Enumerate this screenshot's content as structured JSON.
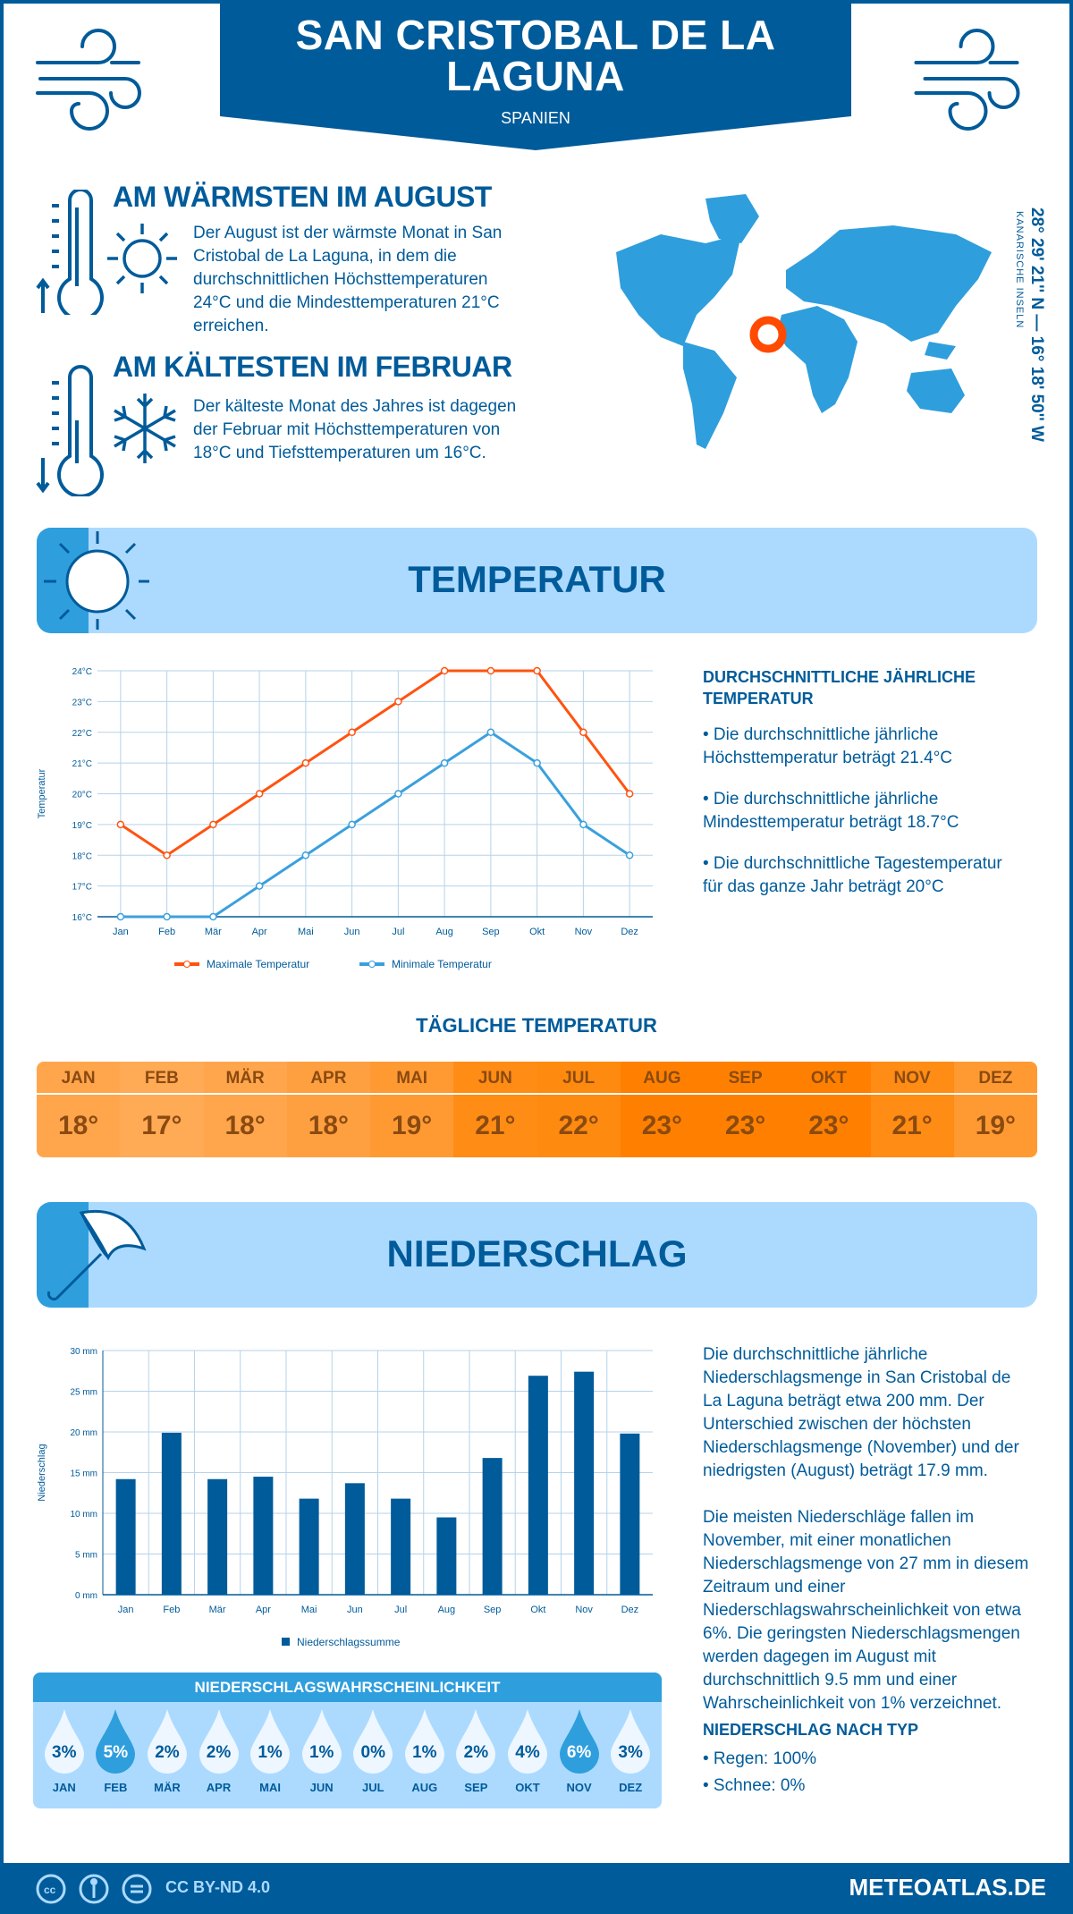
{
  "header": {
    "title": "SAN CRISTOBAL DE LA LAGUNA",
    "country": "SPANIEN"
  },
  "warmest": {
    "title": "AM WÄRMSTEN IM AUGUST",
    "text": "Der August ist der wärmste Monat in San Cristobal de La Laguna, in dem die durchschnittlichen Höchsttemperaturen 24°C und die Mindesttemperaturen 21°C erreichen."
  },
  "coldest": {
    "title": "AM KÄLTESTEN IM FEBRUAR",
    "text": "Der kälteste Monat des Jahres ist dagegen der Februar mit Höchsttemperaturen von 18°C und Tiefsttemperaturen um 16°C."
  },
  "location": {
    "coords": "28° 29' 21'' N — 16° 18' 50'' W",
    "region": "KANARISCHE INSELN"
  },
  "temperature": {
    "section_title": "TEMPERATUR",
    "summary_title": "DURCHSCHNITTLICHE JÄHRLICHE TEMPERATUR",
    "bullets": [
      "• Die durchschnittliche jährliche Höchsttemperatur beträgt 21.4°C",
      "• Die durchschnittliche jährliche Mindesttemperatur beträgt 18.7°C",
      "• Die durchschnittliche Tagestemperatur für das ganze Jahr beträgt 20°C"
    ],
    "daily_title": "TÄGLICHE TEMPERATUR",
    "daily": [
      {
        "month": "JAN",
        "value": "18°",
        "color": "#ffa64d"
      },
      {
        "month": "FEB",
        "value": "17°",
        "color": "#ffaa55"
      },
      {
        "month": "MÄR",
        "value": "18°",
        "color": "#ffa64d"
      },
      {
        "month": "APR",
        "value": "18°",
        "color": "#ffa040"
      },
      {
        "month": "MAI",
        "value": "19°",
        "color": "#ff9a33"
      },
      {
        "month": "JUN",
        "value": "21°",
        "color": "#ff8c14"
      },
      {
        "month": "JUL",
        "value": "22°",
        "color": "#ff8a10"
      },
      {
        "month": "AUG",
        "value": "23°",
        "color": "#ff8000"
      },
      {
        "month": "SEP",
        "value": "23°",
        "color": "#ff8000"
      },
      {
        "month": "OKT",
        "value": "23°",
        "color": "#ff8000"
      },
      {
        "month": "NOV",
        "value": "21°",
        "color": "#ff8c14"
      },
      {
        "month": "DEZ",
        "value": "19°",
        "color": "#ff9a33"
      }
    ]
  },
  "precipitation": {
    "section_title": "NIEDERSCHLAG",
    "text1": "Die durchschnittliche jährliche Niederschlagsmenge in San Cristobal de La Laguna beträgt etwa 200 mm. Der Unterschied zwischen der höchsten Niederschlagsmenge (November) und der niedrigsten (August) beträgt 17.9 mm.",
    "text2": "Die meisten Niederschläge fallen im November, mit einer monatlichen Niederschlagsmenge von 27 mm in diesem Zeitraum und einer Niederschlagswahrscheinlichkeit von etwa 6%. Die geringsten Niederschlagsmengen werden dagegen im August mit durchschnittlich 9.5 mm und einer Wahrscheinlichkeit von 1% verzeichnet.",
    "type_title": "NIEDERSCHLAG NACH TYP",
    "types": [
      "• Regen: 100%",
      "• Schnee: 0%"
    ],
    "probability_title": "NIEDERSCHLAGSWAHRSCHEINLICHKEIT",
    "probability": [
      {
        "month": "JAN",
        "value": "3%",
        "highlight": false
      },
      {
        "month": "FEB",
        "value": "5%",
        "highlight": true
      },
      {
        "month": "MÄR",
        "value": "2%",
        "highlight": false
      },
      {
        "month": "APR",
        "value": "2%",
        "highlight": false
      },
      {
        "month": "MAI",
        "value": "1%",
        "highlight": false
      },
      {
        "month": "JUN",
        "value": "1%",
        "highlight": false
      },
      {
        "month": "JUL",
        "value": "0%",
        "highlight": false
      },
      {
        "month": "AUG",
        "value": "1%",
        "highlight": false
      },
      {
        "month": "SEP",
        "value": "2%",
        "highlight": false
      },
      {
        "month": "OKT",
        "value": "4%",
        "highlight": false
      },
      {
        "month": "NOV",
        "value": "6%",
        "highlight": true
      },
      {
        "month": "DEZ",
        "value": "3%",
        "highlight": false
      }
    ]
  },
  "footer": {
    "license": "CC BY-ND 4.0",
    "site": "METEOATLAS.DE"
  },
  "colors": {
    "primary": "#005b9a",
    "accent": "#2f9edd",
    "light": "#acdaff",
    "max_line": "#ff5310",
    "min_line": "#3aa0dd",
    "marker": "#ff4a00"
  },
  "chart_data": [
    {
      "type": "line",
      "categories": [
        "Jan",
        "Feb",
        "Mär",
        "Apr",
        "Mai",
        "Jun",
        "Jul",
        "Aug",
        "Sep",
        "Okt",
        "Nov",
        "Dez"
      ],
      "series": [
        {
          "name": "Maximale Temperatur",
          "values": [
            19,
            18,
            19,
            20,
            21,
            22,
            23,
            24,
            24,
            24,
            22,
            20
          ]
        },
        {
          "name": "Minimale Temperatur",
          "values": [
            16,
            16,
            16,
            17,
            18,
            19,
            20,
            21,
            22,
            21,
            19,
            18
          ]
        }
      ],
      "ylabel": "Temperatur",
      "ylim": [
        16,
        24
      ],
      "yticks": [
        "16°C",
        "17°C",
        "18°C",
        "19°C",
        "20°C",
        "21°C",
        "22°C",
        "23°C",
        "24°C"
      ],
      "grid": true,
      "legend": "bottom"
    },
    {
      "type": "bar",
      "categories": [
        "Jan",
        "Feb",
        "Mär",
        "Apr",
        "Mai",
        "Jun",
        "Jul",
        "Aug",
        "Sep",
        "Okt",
        "Nov",
        "Dez"
      ],
      "series": [
        {
          "name": "Niederschlagssumme",
          "values": [
            14.2,
            19.9,
            14.2,
            14.5,
            11.8,
            13.7,
            11.8,
            9.5,
            16.8,
            26.9,
            27.4,
            19.8
          ]
        }
      ],
      "ylabel": "Niederschlag",
      "ylim": [
        0,
        30
      ],
      "yticks": [
        "0 mm",
        "5 mm",
        "10 mm",
        "15 mm",
        "20 mm",
        "25 mm",
        "30 mm"
      ],
      "grid": true,
      "legend": "bottom"
    }
  ]
}
